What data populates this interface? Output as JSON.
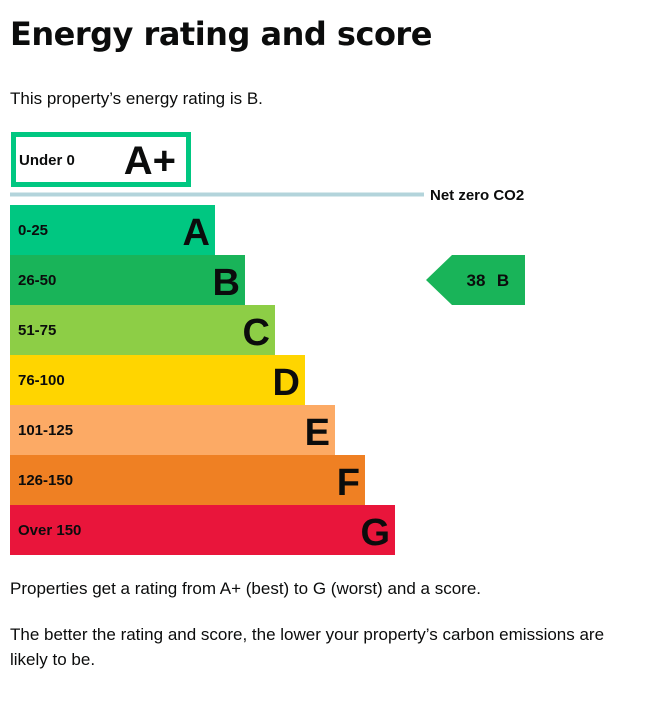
{
  "page": {
    "title": "Energy rating and score",
    "intro": "This property’s energy rating is B.",
    "note_1": "Properties get a rating from A+ (best) to G (worst) and a score.",
    "note_2": "The better the rating and score, the lower your property’s carbon emissions are likely to be."
  },
  "chart_data": {
    "type": "bar",
    "categories": [
      "A+",
      "A",
      "B",
      "C",
      "D",
      "E",
      "F",
      "G"
    ],
    "bands": [
      {
        "letter": "A+",
        "range": "Under 0",
        "color": "#00c781",
        "style": "outline"
      },
      {
        "letter": "A",
        "range": "0-25",
        "color": "#00c781"
      },
      {
        "letter": "B",
        "range": "26-50",
        "color": "#19b459"
      },
      {
        "letter": "C",
        "range": "51-75",
        "color": "#8dce46"
      },
      {
        "letter": "D",
        "range": "76-100",
        "color": "#ffd500"
      },
      {
        "letter": "E",
        "range": "101-125",
        "color": "#fcaa65"
      },
      {
        "letter": "F",
        "range": "126-150",
        "color": "#ef8023"
      },
      {
        "letter": "G",
        "range": "Over 150",
        "color": "#e9153b"
      }
    ],
    "net_zero": {
      "label": "Net zero CO2",
      "color": "#b3d4db"
    },
    "current": {
      "score": "38",
      "letter": "B",
      "color": "#19b459"
    }
  }
}
